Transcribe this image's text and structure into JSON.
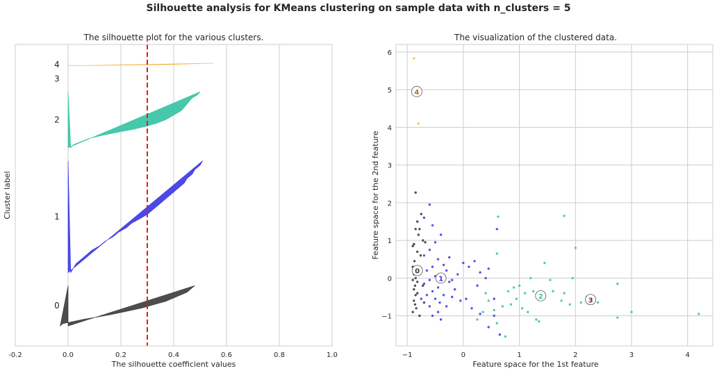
{
  "figure": {
    "suptitle": "Silhouette analysis for KMeans clustering on sample data with n_clusters = 5"
  },
  "chart_data": [
    {
      "type": "area",
      "title": "The silhouette plot for the various clusters.",
      "xlabel": "The silhouette coefficient values",
      "ylabel": "Cluster label",
      "xlim": [
        -0.2,
        1.0
      ],
      "x_ticks": [
        "-0.2",
        "0.0",
        "0.2",
        "0.4",
        "0.6",
        "0.8",
        "1.0"
      ],
      "grid": true,
      "average_silhouette_score": 0.3,
      "clusters": [
        {
          "label": "0",
          "color": "#3a3a3a",
          "band": [
            10,
            41
          ],
          "values": [
            0.48,
            0.47,
            0.46,
            0.45,
            0.43,
            0.41,
            0.39,
            0.37,
            0.34,
            0.31,
            0.28,
            0.24,
            0.2,
            0.16,
            0.11,
            0.06,
            0.02,
            -0.02,
            -0.03
          ]
        },
        {
          "label": "1",
          "color": "#3a35e3",
          "band": [
            51,
            137
          ],
          "values": [
            0.51,
            0.5,
            0.48,
            0.47,
            0.45,
            0.44,
            0.42,
            0.4,
            0.38,
            0.36,
            0.34,
            0.32,
            0.3,
            0.27,
            0.24,
            0.22,
            0.19,
            0.17,
            0.14,
            0.12,
            0.09,
            0.07,
            0.05,
            0.03,
            0.02,
            0.01
          ]
        },
        {
          "label": "2",
          "color": "#34c2a2",
          "band": [
            147,
            190
          ],
          "values": [
            0.5,
            0.49,
            0.47,
            0.46,
            0.45,
            0.44,
            0.43,
            0.41,
            0.39,
            0.37,
            0.34,
            0.3,
            0.25,
            0.19,
            0.13,
            0.08,
            0.05,
            0.02,
            0.01
          ]
        },
        {
          "label": "3",
          "color": "#7f2a2a",
          "band": [
            200,
            200
          ],
          "values": []
        },
        {
          "label": "4",
          "color": "#f9b03f",
          "band": [
            210,
            212
          ],
          "values": [
            0.55,
            0.38,
            0.0
          ]
        }
      ]
    },
    {
      "type": "scatter",
      "title": "The visualization of the clustered data.",
      "xlabel": "Feature space for the 1st feature",
      "ylabel": "Feature space for the 2nd feature",
      "xlim": [
        -1.2,
        4.45
      ],
      "ylim": [
        -1.8,
        6.2
      ],
      "x_ticks": [
        "−1",
        "0",
        "1",
        "2",
        "3",
        "4"
      ],
      "y_ticks": [
        "−1",
        "0",
        "1",
        "2",
        "3",
        "4",
        "5",
        "6"
      ],
      "grid": true,
      "series": [
        {
          "cluster": "0",
          "color": "#303030",
          "points": [
            [
              -0.85,
              2.27
            ],
            [
              -0.75,
              1.7
            ],
            [
              -0.82,
              1.5
            ],
            [
              -0.85,
              1.3
            ],
            [
              -0.78,
              1.3
            ],
            [
              -0.8,
              1.15
            ],
            [
              -0.88,
              0.9
            ],
            [
              -0.72,
              1.0
            ],
            [
              -0.68,
              0.95
            ],
            [
              -0.9,
              0.85
            ],
            [
              -0.82,
              0.7
            ],
            [
              -0.87,
              0.45
            ],
            [
              -0.9,
              0.3
            ],
            [
              -0.8,
              0.25
            ],
            [
              -0.88,
              0.1
            ],
            [
              -0.85,
              0.0
            ],
            [
              -0.9,
              -0.05
            ],
            [
              -0.82,
              -0.1
            ],
            [
              -0.86,
              -0.2
            ],
            [
              -0.88,
              -0.3
            ],
            [
              -0.85,
              -0.45
            ],
            [
              -0.82,
              -0.4
            ],
            [
              -0.88,
              -0.6
            ],
            [
              -0.86,
              -0.7
            ],
            [
              -0.84,
              -0.8
            ],
            [
              -0.9,
              -0.9
            ],
            [
              -0.78,
              -1.0
            ],
            [
              -0.7,
              -0.65
            ],
            [
              -0.72,
              -0.2
            ],
            [
              -0.76,
              0.6
            ]
          ]
        },
        {
          "cluster": "1",
          "color": "#3a35e3",
          "points": [
            [
              -0.6,
              1.95
            ],
            [
              -0.7,
              1.6
            ],
            [
              -0.55,
              1.4
            ],
            [
              -0.4,
              1.15
            ],
            [
              -0.5,
              0.95
            ],
            [
              -0.6,
              0.75
            ],
            [
              -0.7,
              0.6
            ],
            [
              -0.45,
              0.5
            ],
            [
              -0.35,
              0.35
            ],
            [
              -0.55,
              0.3
            ],
            [
              -0.65,
              0.2
            ],
            [
              -0.3,
              0.2
            ],
            [
              -0.5,
              0.05
            ],
            [
              -0.6,
              -0.05
            ],
            [
              -0.4,
              -0.1
            ],
            [
              -0.25,
              -0.1
            ],
            [
              -0.7,
              -0.15
            ],
            [
              -0.45,
              -0.25
            ],
            [
              -0.55,
              -0.35
            ],
            [
              -0.35,
              -0.45
            ],
            [
              -0.65,
              -0.45
            ],
            [
              -0.5,
              -0.55
            ],
            [
              -0.42,
              -0.65
            ],
            [
              -0.6,
              -0.75
            ],
            [
              -0.3,
              -0.75
            ],
            [
              -0.45,
              -0.9
            ],
            [
              -0.55,
              -1.0
            ],
            [
              -0.4,
              -1.1
            ],
            [
              -0.2,
              -0.5
            ],
            [
              -0.15,
              -0.3
            ],
            [
              -0.1,
              0.1
            ],
            [
              0.0,
              0.4
            ],
            [
              0.1,
              0.3
            ],
            [
              0.2,
              0.45
            ],
            [
              0.3,
              0.15
            ],
            [
              0.4,
              0.0
            ],
            [
              0.25,
              -0.2
            ],
            [
              0.05,
              -0.55
            ],
            [
              -0.05,
              -0.6
            ],
            [
              0.15,
              -0.8
            ],
            [
              0.3,
              -0.95
            ],
            [
              0.45,
              -1.3
            ],
            [
              0.55,
              -1.0
            ],
            [
              0.6,
              1.3
            ],
            [
              0.45,
              0.25
            ],
            [
              -0.25,
              0.55
            ],
            [
              0.55,
              -0.55
            ],
            [
              0.65,
              -1.5
            ],
            [
              -0.75,
              -0.55
            ],
            [
              -0.2,
              -0.05
            ]
          ]
        },
        {
          "cluster": "2",
          "color": "#34c2a2",
          "points": [
            [
              0.62,
              1.63
            ],
            [
              0.6,
              0.65
            ],
            [
              1.8,
              1.65
            ],
            [
              2.0,
              0.8
            ],
            [
              1.45,
              0.4
            ],
            [
              1.2,
              0.0
            ],
            [
              1.0,
              -0.2
            ],
            [
              1.1,
              -0.4
            ],
            [
              1.25,
              -0.35
            ],
            [
              0.95,
              -0.55
            ],
            [
              0.85,
              -0.7
            ],
            [
              0.7,
              -0.75
            ],
            [
              0.55,
              -0.85
            ],
            [
              0.45,
              -0.6
            ],
            [
              0.4,
              -0.4
            ],
            [
              0.35,
              -0.9
            ],
            [
              0.25,
              -1.1
            ],
            [
              0.6,
              -1.2
            ],
            [
              0.75,
              -1.55
            ],
            [
              1.3,
              -1.1
            ],
            [
              1.35,
              -1.15
            ],
            [
              1.6,
              -0.35
            ],
            [
              1.8,
              -0.4
            ],
            [
              1.9,
              -0.7
            ],
            [
              1.95,
              -0.0
            ],
            [
              2.1,
              -0.65
            ],
            [
              2.4,
              -0.65
            ],
            [
              2.75,
              -0.15
            ],
            [
              2.75,
              -1.05
            ],
            [
              3.0,
              -0.9
            ],
            [
              4.2,
              -0.95
            ],
            [
              1.55,
              -0.05
            ],
            [
              1.75,
              -0.6
            ],
            [
              0.9,
              -0.25
            ],
            [
              1.05,
              -0.8
            ],
            [
              1.15,
              -0.9
            ],
            [
              0.8,
              -0.35
            ],
            [
              2.2,
              -0.5
            ]
          ]
        },
        {
          "cluster": "4",
          "color": "#f9b03f",
          "points": [
            [
              -0.88,
              5.83
            ],
            [
              -0.8,
              4.1
            ]
          ]
        }
      ],
      "centers": [
        {
          "label": "0",
          "x": -0.82,
          "y": 0.2
        },
        {
          "label": "1",
          "x": -0.4,
          "y": 0.0
        },
        {
          "label": "2",
          "x": 1.38,
          "y": -0.47
        },
        {
          "label": "3",
          "x": 2.27,
          "y": -0.57
        },
        {
          "label": "4",
          "x": -0.83,
          "y": 4.95
        }
      ]
    }
  ]
}
